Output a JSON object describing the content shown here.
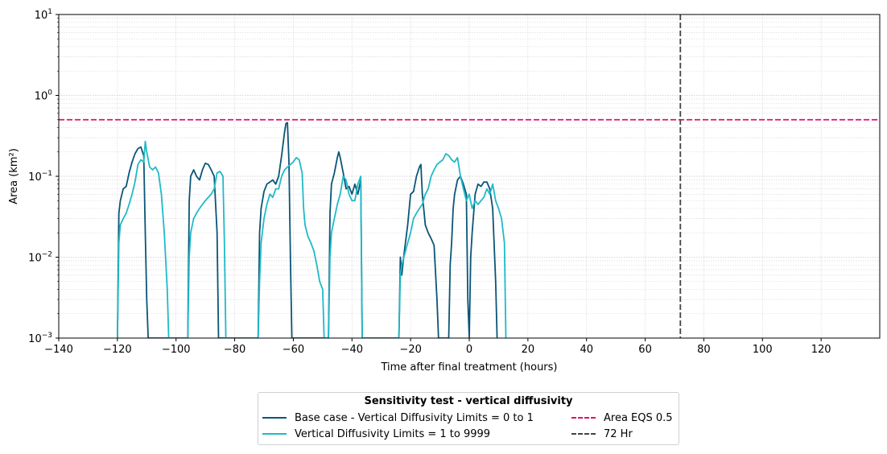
{
  "chart_data": {
    "type": "line",
    "title": "",
    "xlabel": "Time after final treatment (hours)",
    "ylabel": "Area (km²)",
    "xlim": [
      -140,
      140
    ],
    "ylim": [
      0.001,
      10
    ],
    "yscale": "log",
    "grid": true,
    "xticks": [
      -140,
      -120,
      -100,
      -80,
      -60,
      -40,
      -20,
      0,
      20,
      40,
      60,
      80,
      100,
      120
    ],
    "xtick_labels": [
      "−140",
      "−120",
      "−100",
      "−80",
      "−60",
      "−40",
      "−20",
      "0",
      "20",
      "40",
      "60",
      "80",
      "100",
      "120"
    ],
    "ytick_labels": [
      {
        "base": "10",
        "exp": "−3",
        "value": 0.001
      },
      {
        "base": "10",
        "exp": "−2",
        "value": 0.01
      },
      {
        "base": "10",
        "exp": "−1",
        "value": 0.1
      },
      {
        "base": "10",
        "exp": "0",
        "value": 1
      },
      {
        "base": "10",
        "exp": "1",
        "value": 10
      }
    ],
    "legend": {
      "title": "Sensitivity test - vertical diffusivity",
      "placement": "bottom-center"
    },
    "series": [
      {
        "name": "Base case - Vertical Diffusivity Limits = 0 to 1",
        "color": "#0b5577",
        "style": "solid",
        "points": [
          [
            -120,
            0.001
          ],
          [
            -119.5,
            0.035
          ],
          [
            -119,
            0.05
          ],
          [
            -118,
            0.07
          ],
          [
            -117,
            0.075
          ],
          [
            -116,
            0.11
          ],
          [
            -115,
            0.15
          ],
          [
            -114,
            0.19
          ],
          [
            -113,
            0.22
          ],
          [
            -112,
            0.23
          ],
          [
            -111,
            0.18
          ],
          [
            -110.5,
            0.02
          ],
          [
            -110,
            0.003
          ],
          [
            -109.5,
            0.001
          ],
          [
            -96,
            0.001
          ],
          [
            -95.5,
            0.05
          ],
          [
            -95,
            0.1
          ],
          [
            -94,
            0.12
          ],
          [
            -93,
            0.1
          ],
          [
            -92,
            0.09
          ],
          [
            -91,
            0.12
          ],
          [
            -90,
            0.145
          ],
          [
            -89,
            0.14
          ],
          [
            -88,
            0.12
          ],
          [
            -87,
            0.1
          ],
          [
            -86,
            0.02
          ],
          [
            -85.5,
            0.001
          ],
          [
            -72,
            0.001
          ],
          [
            -71.5,
            0.02
          ],
          [
            -71,
            0.04
          ],
          [
            -70,
            0.065
          ],
          [
            -69,
            0.08
          ],
          [
            -68,
            0.085
          ],
          [
            -67,
            0.09
          ],
          [
            -66,
            0.08
          ],
          [
            -65,
            0.1
          ],
          [
            -64,
            0.18
          ],
          [
            -63,
            0.35
          ],
          [
            -62.5,
            0.45
          ],
          [
            -62,
            0.46
          ],
          [
            -61.5,
            0.15
          ],
          [
            -61,
            0.01
          ],
          [
            -60.5,
            0.001
          ],
          [
            -48,
            0.001
          ],
          [
            -47.5,
            0.035
          ],
          [
            -47,
            0.08
          ],
          [
            -46,
            0.11
          ],
          [
            -45,
            0.17
          ],
          [
            -44.5,
            0.2
          ],
          [
            -44,
            0.17
          ],
          [
            -43,
            0.11
          ],
          [
            -42,
            0.07
          ],
          [
            -41,
            0.075
          ],
          [
            -40,
            0.06
          ],
          [
            -39,
            0.08
          ],
          [
            -38,
            0.06
          ],
          [
            -37,
            0.09
          ],
          [
            -36.5,
            0.001
          ],
          [
            -24,
            0.001
          ],
          [
            -23.5,
            0.01
          ],
          [
            -23,
            0.006
          ],
          [
            -22.5,
            0.009
          ],
          [
            -22,
            0.013
          ],
          [
            -21,
            0.025
          ],
          [
            -20,
            0.06
          ],
          [
            -19,
            0.065
          ],
          [
            -18,
            0.1
          ],
          [
            -17,
            0.13
          ],
          [
            -16.5,
            0.14
          ],
          [
            -16,
            0.06
          ],
          [
            -15,
            0.025
          ],
          [
            -14,
            0.02
          ],
          [
            -13,
            0.017
          ],
          [
            -12,
            0.014
          ],
          [
            -11,
            0.003
          ],
          [
            -10.5,
            0.001
          ],
          [
            -7,
            0.001
          ],
          [
            -6.5,
            0.008
          ],
          [
            -6,
            0.015
          ],
          [
            -5.5,
            0.04
          ],
          [
            -5,
            0.06
          ],
          [
            -4,
            0.09
          ],
          [
            -3,
            0.1
          ],
          [
            -2,
            0.08
          ],
          [
            -1,
            0.06
          ],
          [
            -0.5,
            0.003
          ],
          [
            0,
            0.001
          ],
          [
            0.5,
            0.01
          ],
          [
            1,
            0.02
          ],
          [
            2,
            0.06
          ],
          [
            3,
            0.08
          ],
          [
            4,
            0.075
          ],
          [
            5,
            0.085
          ],
          [
            6,
            0.085
          ],
          [
            7,
            0.07
          ],
          [
            8,
            0.04
          ],
          [
            9,
            0.005
          ],
          [
            9.5,
            0.001
          ]
        ]
      },
      {
        "name": "Vertical Diffusivity Limits = 1 to 9999",
        "color": "#1fbac8",
        "style": "solid",
        "points": [
          [
            -120,
            0.001
          ],
          [
            -119.5,
            0.015
          ],
          [
            -119,
            0.025
          ],
          [
            -118,
            0.03
          ],
          [
            -117,
            0.035
          ],
          [
            -116,
            0.045
          ],
          [
            -115,
            0.06
          ],
          [
            -114,
            0.085
          ],
          [
            -113,
            0.14
          ],
          [
            -112,
            0.16
          ],
          [
            -111,
            0.15
          ],
          [
            -110.5,
            0.27
          ],
          [
            -110,
            0.2
          ],
          [
            -109,
            0.13
          ],
          [
            -108,
            0.12
          ],
          [
            -107,
            0.13
          ],
          [
            -106,
            0.11
          ],
          [
            -105,
            0.06
          ],
          [
            -104,
            0.02
          ],
          [
            -103,
            0.004
          ],
          [
            -102.5,
            0.001
          ],
          [
            -96,
            0.001
          ],
          [
            -95.5,
            0.01
          ],
          [
            -95,
            0.02
          ],
          [
            -94,
            0.03
          ],
          [
            -93,
            0.035
          ],
          [
            -92,
            0.04
          ],
          [
            -91,
            0.045
          ],
          [
            -90,
            0.05
          ],
          [
            -89,
            0.055
          ],
          [
            -88,
            0.06
          ],
          [
            -87,
            0.07
          ],
          [
            -86,
            0.11
          ],
          [
            -85,
            0.115
          ],
          [
            -84,
            0.1
          ],
          [
            -83.5,
            0.015
          ],
          [
            -83,
            0.001
          ],
          [
            -72,
            0.001
          ],
          [
            -71.5,
            0.005
          ],
          [
            -71,
            0.015
          ],
          [
            -70,
            0.03
          ],
          [
            -69,
            0.045
          ],
          [
            -68,
            0.06
          ],
          [
            -67,
            0.055
          ],
          [
            -66,
            0.07
          ],
          [
            -65,
            0.07
          ],
          [
            -64,
            0.1
          ],
          [
            -63,
            0.12
          ],
          [
            -62,
            0.13
          ],
          [
            -61,
            0.14
          ],
          [
            -60,
            0.15
          ],
          [
            -59,
            0.17
          ],
          [
            -58,
            0.16
          ],
          [
            -57,
            0.11
          ],
          [
            -56.5,
            0.04
          ],
          [
            -56,
            0.025
          ],
          [
            -55,
            0.018
          ],
          [
            -54,
            0.015
          ],
          [
            -53,
            0.012
          ],
          [
            -52,
            0.008
          ],
          [
            -51,
            0.005
          ],
          [
            -50,
            0.004
          ],
          [
            -49.5,
            0.001
          ],
          [
            -48,
            0.001
          ],
          [
            -47.5,
            0.01
          ],
          [
            -47,
            0.02
          ],
          [
            -46,
            0.03
          ],
          [
            -45,
            0.045
          ],
          [
            -44,
            0.06
          ],
          [
            -43,
            0.1
          ],
          [
            -42,
            0.09
          ],
          [
            -41,
            0.06
          ],
          [
            -40,
            0.05
          ],
          [
            -39,
            0.05
          ],
          [
            -38,
            0.08
          ],
          [
            -37,
            0.1
          ],
          [
            -36.5,
            0.001
          ],
          [
            -24,
            0.001
          ],
          [
            -23.5,
            0.006
          ],
          [
            -23,
            0.008
          ],
          [
            -22,
            0.011
          ],
          [
            -21,
            0.015
          ],
          [
            -20,
            0.02
          ],
          [
            -19,
            0.03
          ],
          [
            -18,
            0.035
          ],
          [
            -17,
            0.04
          ],
          [
            -16,
            0.045
          ],
          [
            -15,
            0.06
          ],
          [
            -14,
            0.07
          ],
          [
            -13,
            0.1
          ],
          [
            -12,
            0.12
          ],
          [
            -11,
            0.14
          ],
          [
            -10,
            0.15
          ],
          [
            -9,
            0.16
          ],
          [
            -8,
            0.19
          ],
          [
            -7,
            0.18
          ],
          [
            -6,
            0.16
          ],
          [
            -5,
            0.15
          ],
          [
            -4,
            0.17
          ],
          [
            -3,
            0.1
          ],
          [
            -2,
            0.07
          ],
          [
            -1,
            0.05
          ],
          [
            0,
            0.06
          ],
          [
            1,
            0.04
          ],
          [
            2,
            0.05
          ],
          [
            3,
            0.045
          ],
          [
            4,
            0.05
          ],
          [
            5,
            0.055
          ],
          [
            6,
            0.07
          ],
          [
            7,
            0.06
          ],
          [
            8,
            0.08
          ],
          [
            9,
            0.05
          ],
          [
            10,
            0.04
          ],
          [
            11,
            0.03
          ],
          [
            12,
            0.015
          ],
          [
            12.5,
            0.001
          ]
        ]
      }
    ],
    "reference_lines": [
      {
        "name": "Area EQS 0.5",
        "orientation": "horizontal",
        "value": 0.5,
        "color": "#e0106c",
        "style": "dashed"
      },
      {
        "name": "72 Hr",
        "orientation": "vertical",
        "value": 72,
        "color": "#444444",
        "style": "dashed"
      }
    ]
  }
}
